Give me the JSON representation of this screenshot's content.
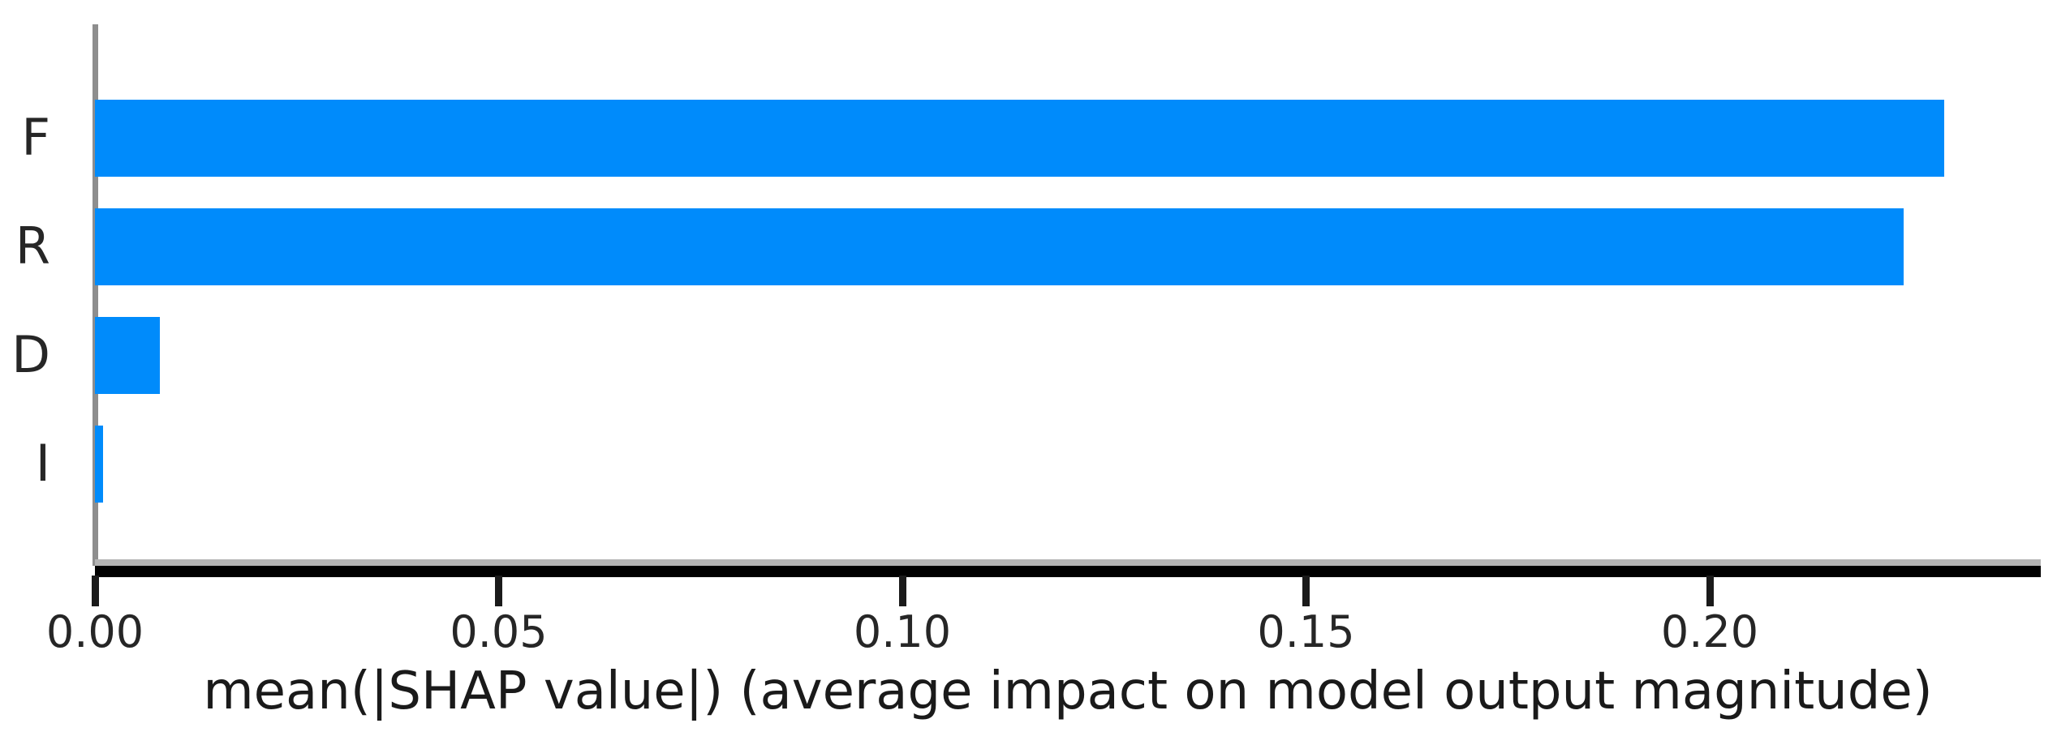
{
  "chart_data": {
    "type": "bar",
    "orientation": "horizontal",
    "title": "",
    "xlabel": "mean(|SHAP value|) (average impact on model output magnitude)",
    "ylabel": "",
    "categories": [
      "F",
      "R",
      "D",
      "I"
    ],
    "values": [
      0.229,
      0.224,
      0.008,
      0.001
    ],
    "xlim": [
      0,
      0.241
    ],
    "xticks": [
      0.0,
      0.05,
      0.1,
      0.15,
      0.2
    ],
    "xtick_labels": [
      "0.00",
      "0.05",
      "0.10",
      "0.15",
      "0.20"
    ],
    "grid": false,
    "legend": null,
    "colors": {
      "bar": "#008bfb",
      "axis": "#000000",
      "spine": "#8e8e8e",
      "text": "#262626"
    }
  }
}
